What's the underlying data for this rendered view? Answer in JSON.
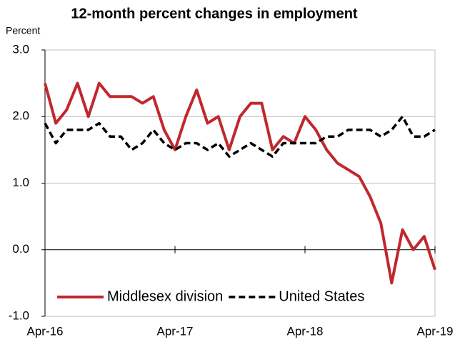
{
  "chart_data": {
    "type": "line",
    "title": "12-month percent changes in employment",
    "y_label": "Percent",
    "categories": [
      "Apr-16",
      null,
      null,
      null,
      null,
      null,
      null,
      null,
      null,
      null,
      null,
      null,
      "Apr-17",
      null,
      null,
      null,
      null,
      null,
      null,
      null,
      null,
      null,
      null,
      null,
      "Apr-18",
      null,
      null,
      null,
      null,
      null,
      null,
      null,
      null,
      null,
      null,
      null,
      "Apr-19"
    ],
    "series": [
      {
        "name": "Middlesex division",
        "color": "#c0282d",
        "dash": "solid",
        "values": [
          2.5,
          1.9,
          2.1,
          2.5,
          2.0,
          2.5,
          2.3,
          2.3,
          2.3,
          2.2,
          2.3,
          1.8,
          1.5,
          2.0,
          2.4,
          1.9,
          2.0,
          1.5,
          2.0,
          2.2,
          2.2,
          1.5,
          1.7,
          1.6,
          2.0,
          1.8,
          1.5,
          1.3,
          1.2,
          1.1,
          0.8,
          0.4,
          -0.5,
          0.3,
          0.0,
          0.2,
          -0.3
        ]
      },
      {
        "name": "United States",
        "color": "#000000",
        "dash": "dashed",
        "values": [
          1.9,
          1.6,
          1.8,
          1.8,
          1.8,
          1.9,
          1.7,
          1.7,
          1.5,
          1.6,
          1.8,
          1.6,
          1.5,
          1.6,
          1.6,
          1.5,
          1.6,
          1.4,
          1.5,
          1.6,
          1.5,
          1.4,
          1.6,
          1.6,
          1.6,
          1.6,
          1.7,
          1.7,
          1.8,
          1.8,
          1.8,
          1.7,
          1.8,
          2.0,
          1.7,
          1.7,
          1.8
        ]
      }
    ],
    "ylim": [
      -1,
      3
    ],
    "yticks": [
      {
        "value": -1,
        "label": "-1.0"
      },
      {
        "value": 0,
        "label": "0.0"
      },
      {
        "value": 1,
        "label": "1.0"
      },
      {
        "value": 2,
        "label": "2.0"
      },
      {
        "value": 3,
        "label": "3.0"
      }
    ],
    "grid": true,
    "legend": "bottom"
  }
}
